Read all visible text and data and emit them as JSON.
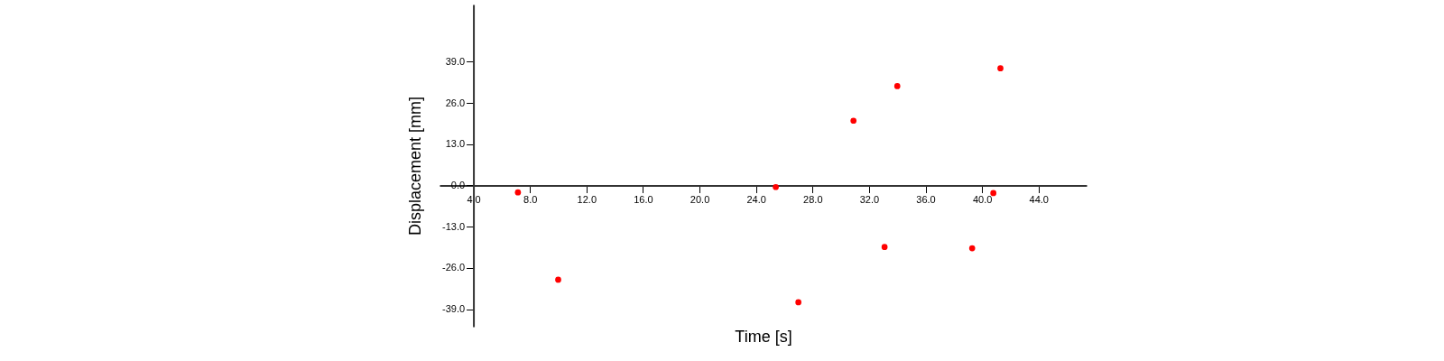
{
  "chart_data": {
    "type": "scatter",
    "xlabel": "Time [s]",
    "ylabel": "Displacement [mm]",
    "x": [
      7.15,
      10.0,
      25.4,
      27.0,
      30.9,
      34.0,
      33.1,
      39.3,
      40.8,
      41.3
    ],
    "series": [
      {
        "color": "#ff0000",
        "values": [
          -2.2,
          -29.7,
          -0.5,
          -36.8,
          20.4,
          31.3,
          -19.4,
          -19.8,
          -2.4,
          36.9
        ]
      }
    ],
    "xlim": [
      1.6,
      47.4
    ],
    "ylim": [
      -44.5,
      57
    ],
    "xticks": [
      {
        "value": 4,
        "label": "4.0"
      },
      {
        "value": 8,
        "label": "8.0"
      },
      {
        "value": 12,
        "label": "12.0"
      },
      {
        "value": 16,
        "label": "16.0"
      },
      {
        "value": 20,
        "label": "20.0"
      },
      {
        "value": 24,
        "label": "24.0"
      },
      {
        "value": 28,
        "label": "28.0"
      },
      {
        "value": 32,
        "label": "32.0"
      },
      {
        "value": 36,
        "label": "36.0"
      },
      {
        "value": 40,
        "label": "40.0"
      },
      {
        "value": 44,
        "label": "44.0"
      }
    ],
    "yticks": [
      {
        "value": -39,
        "label": "-39.0"
      },
      {
        "value": -26,
        "label": "-26.0"
      },
      {
        "value": -13,
        "label": "-13.0"
      },
      {
        "value": 0,
        "label": "0.0"
      },
      {
        "value": 13,
        "label": "13.0"
      },
      {
        "value": 26,
        "label": "26.0"
      },
      {
        "value": 39,
        "label": "39.0"
      }
    ],
    "grid": false,
    "marker": "circle"
  }
}
